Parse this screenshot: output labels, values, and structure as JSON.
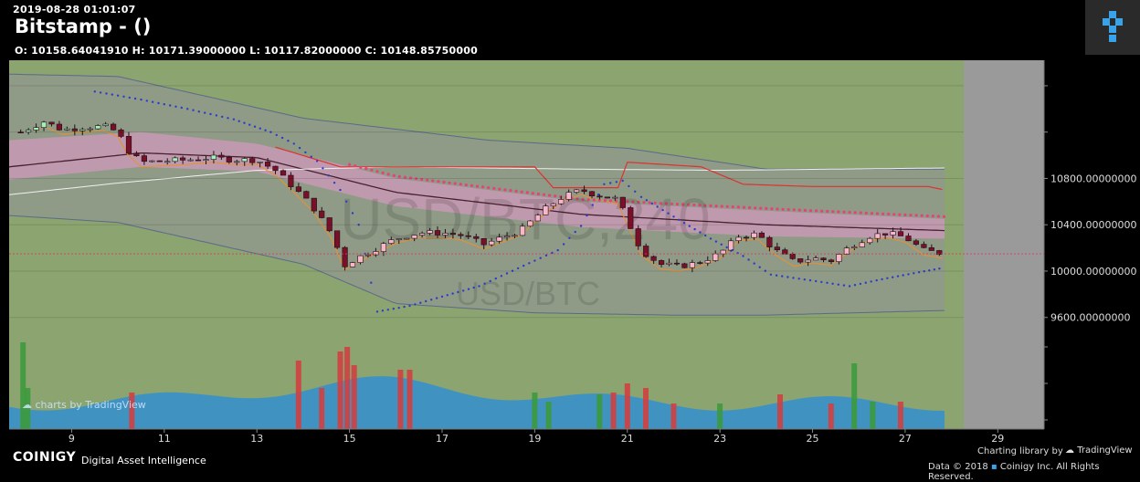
{
  "header": {
    "timestamp": "2019-08-28 01:01:07",
    "title": "Bitstamp -  ()",
    "ohlc": "O: 10158.64041910 H: 10171.39000000 L: 10117.82000000 C: 10148.85750000"
  },
  "watermark": {
    "pair_big": "USD/BTC,240",
    "pair_small": "USD/BTC"
  },
  "chart_data": {
    "type": "candlestick",
    "title": "",
    "x_tick_labels": [
      "9",
      "11",
      "13",
      "15",
      "17",
      "19",
      "21",
      "23",
      "25",
      "27",
      "29"
    ],
    "y_tick_labels": [
      "10800.00000000",
      "10400.00000000",
      "10000.00000000",
      "9600.00000000"
    ],
    "y_ticks": [
      10800,
      10400,
      10000,
      9600
    ],
    "ylim": [
      9330,
      11820
    ],
    "x_range": [
      7.65,
      30.0
    ],
    "last_candle_x": 27.85,
    "candle_interval_days": 0.1667,
    "ohlc_last": {
      "open": 10158.6404191,
      "high": 10171.39,
      "low": 10117.82,
      "close": 10148.8575
    },
    "price_path": [
      [
        7.9,
        11200
      ],
      [
        8.4,
        11290
      ],
      [
        8.8,
        11220
      ],
      [
        9.2,
        11240
      ],
      [
        9.7,
        11250
      ],
      [
        10.0,
        11200
      ],
      [
        10.2,
        11050
      ],
      [
        10.5,
        10940
      ],
      [
        11.0,
        10950
      ],
      [
        11.5,
        10960
      ],
      [
        12.0,
        10980
      ],
      [
        12.5,
        10960
      ],
      [
        13.0,
        10960
      ],
      [
        13.4,
        10870
      ],
      [
        13.8,
        10720
      ],
      [
        14.2,
        10560
      ],
      [
        14.6,
        10330
      ],
      [
        14.9,
        10050
      ],
      [
        15.1,
        10100
      ],
      [
        15.5,
        10180
      ],
      [
        16.0,
        10280
      ],
      [
        16.5,
        10330
      ],
      [
        17.0,
        10330
      ],
      [
        17.4,
        10310
      ],
      [
        17.9,
        10230
      ],
      [
        18.3,
        10290
      ],
      [
        18.7,
        10350
      ],
      [
        19.0,
        10460
      ],
      [
        19.3,
        10560
      ],
      [
        19.6,
        10640
      ],
      [
        20.0,
        10700
      ],
      [
        20.3,
        10660
      ],
      [
        20.8,
        10620
      ],
      [
        21.0,
        10440
      ],
      [
        21.3,
        10180
      ],
      [
        21.7,
        10060
      ],
      [
        22.1,
        10040
      ],
      [
        22.5,
        10070
      ],
      [
        23.0,
        10150
      ],
      [
        23.4,
        10300
      ],
      [
        23.8,
        10320
      ],
      [
        24.2,
        10180
      ],
      [
        24.6,
        10080
      ],
      [
        25.0,
        10110
      ],
      [
        25.4,
        10090
      ],
      [
        25.8,
        10210
      ],
      [
        26.2,
        10300
      ],
      [
        26.6,
        10330
      ],
      [
        27.0,
        10290
      ],
      [
        27.4,
        10180
      ],
      [
        27.85,
        10149
      ]
    ],
    "sar_points": [
      [
        9.5,
        11550
      ],
      [
        10.5,
        11480
      ],
      [
        11.5,
        11400
      ],
      [
        12.5,
        11310
      ],
      [
        13.3,
        11200
      ],
      [
        13.8,
        11100
      ],
      [
        14.3,
        10950
      ],
      [
        14.8,
        10700
      ],
      [
        15.2,
        10400
      ],
      [
        15.6,
        9650
      ],
      [
        16.3,
        9700
      ],
      [
        17.0,
        9780
      ],
      [
        17.8,
        9870
      ],
      [
        18.4,
        9980
      ],
      [
        19.0,
        10090
      ],
      [
        19.5,
        10180
      ],
      [
        20.0,
        10390
      ],
      [
        20.5,
        10750
      ],
      [
        20.9,
        10780
      ],
      [
        21.3,
        10640
      ],
      [
        22.0,
        10470
      ],
      [
        22.8,
        10280
      ],
      [
        23.5,
        10130
      ],
      [
        24.1,
        9970
      ],
      [
        25.8,
        9870
      ],
      [
        26.5,
        9930
      ],
      [
        27.3,
        9990
      ],
      [
        27.85,
        10030
      ]
    ],
    "bands": {
      "outer_upper": [
        [
          7.65,
          11700
        ],
        [
          10.0,
          11680
        ],
        [
          14.0,
          11320
        ],
        [
          18.0,
          11130
        ],
        [
          21.0,
          11060
        ],
        [
          24.0,
          10880
        ],
        [
          27.85,
          10880
        ]
      ],
      "outer_lower": [
        [
          7.65,
          10480
        ],
        [
          10.0,
          10420
        ],
        [
          14.0,
          10060
        ],
        [
          16.0,
          9720
        ],
        [
          19.0,
          9640
        ],
        [
          22.0,
          9620
        ],
        [
          24.0,
          9620
        ],
        [
          27.85,
          9660
        ]
      ],
      "inner_upper": [
        [
          7.65,
          11130
        ],
        [
          10.5,
          11200
        ],
        [
          13.0,
          11100
        ],
        [
          16.0,
          10800
        ],
        [
          20.0,
          10600
        ],
        [
          24.0,
          10520
        ],
        [
          27.85,
          10450
        ]
      ],
      "inner_lower": [
        [
          7.65,
          10790
        ],
        [
          10.5,
          10900
        ],
        [
          13.0,
          10860
        ],
        [
          16.0,
          10560
        ],
        [
          20.0,
          10380
        ],
        [
          24.0,
          10300
        ],
        [
          27.85,
          10280
        ]
      ],
      "mid_line": [
        [
          7.65,
          10900
        ],
        [
          10.5,
          11020
        ],
        [
          13.0,
          10980
        ],
        [
          16.0,
          10680
        ],
        [
          20.0,
          10490
        ],
        [
          24.0,
          10400
        ],
        [
          27.85,
          10350
        ]
      ],
      "white_line": [
        [
          7.65,
          10660
        ],
        [
          10.0,
          10760
        ],
        [
          13.0,
          10870
        ],
        [
          16.0,
          10900
        ],
        [
          20.0,
          10880
        ],
        [
          23.0,
          10870
        ],
        [
          27.85,
          10890
        ]
      ],
      "red_step": [
        [
          13.4,
          11070
        ],
        [
          14.8,
          10900
        ],
        [
          17.0,
          10900
        ],
        [
          19.0,
          10900
        ],
        [
          19.4,
          10720
        ],
        [
          20.8,
          10720
        ],
        [
          21.0,
          10940
        ],
        [
          22.6,
          10900
        ],
        [
          23.5,
          10750
        ],
        [
          25.0,
          10730
        ],
        [
          27.5,
          10730
        ],
        [
          27.85,
          10700
        ]
      ]
    },
    "volume_bars": [
      [
        7.95,
        95,
        "#3c9a3c"
      ],
      [
        8.05,
        45,
        "#3c9a3c"
      ],
      [
        10.3,
        40,
        "#d04040"
      ],
      [
        13.9,
        75,
        "#d04040"
      ],
      [
        14.4,
        45,
        "#d04040"
      ],
      [
        14.8,
        85,
        "#d04040"
      ],
      [
        14.95,
        90,
        "#d04040"
      ],
      [
        15.1,
        70,
        "#d04040"
      ],
      [
        16.1,
        65,
        "#d04040"
      ],
      [
        16.3,
        65,
        "#d04040"
      ],
      [
        19.0,
        40,
        "#3c9a3c"
      ],
      [
        19.3,
        30,
        "#3c9a3c"
      ],
      [
        20.4,
        38,
        "#3c9a3c"
      ],
      [
        20.7,
        40,
        "#d04040"
      ],
      [
        21.0,
        50,
        "#d04040"
      ],
      [
        21.4,
        45,
        "#d04040"
      ],
      [
        22.0,
        28,
        "#d04040"
      ],
      [
        23.0,
        28,
        "#3c9a3c"
      ],
      [
        24.3,
        38,
        "#d04040"
      ],
      [
        25.4,
        28,
        "#d04040"
      ],
      [
        25.9,
        72,
        "#3c9a3c"
      ],
      [
        26.3,
        30,
        "#3c9a3c"
      ],
      [
        26.9,
        30,
        "#d04040"
      ]
    ],
    "colors": {
      "up_candle": "#a4f0b8",
      "down_candle": "#7a0f28",
      "up_candle_late": "#f6b8c8",
      "price_bg": "#8ba470",
      "band_outer": "#8f9a8a",
      "band_inner": "#c49ab2",
      "right_margin": "#9a9a9a",
      "volume_bg": "#2d8fd6"
    }
  },
  "watermark_badge": "charts by TradingView",
  "footer": {
    "brand": "COINIGY",
    "tagline": "Digital Asset Intelligence",
    "charting_library": "Charting library by",
    "tradingview": "TradingView",
    "copyright": "Data © 2018",
    "copyright_tail": "Coinigy Inc. All Rights Reserved."
  }
}
